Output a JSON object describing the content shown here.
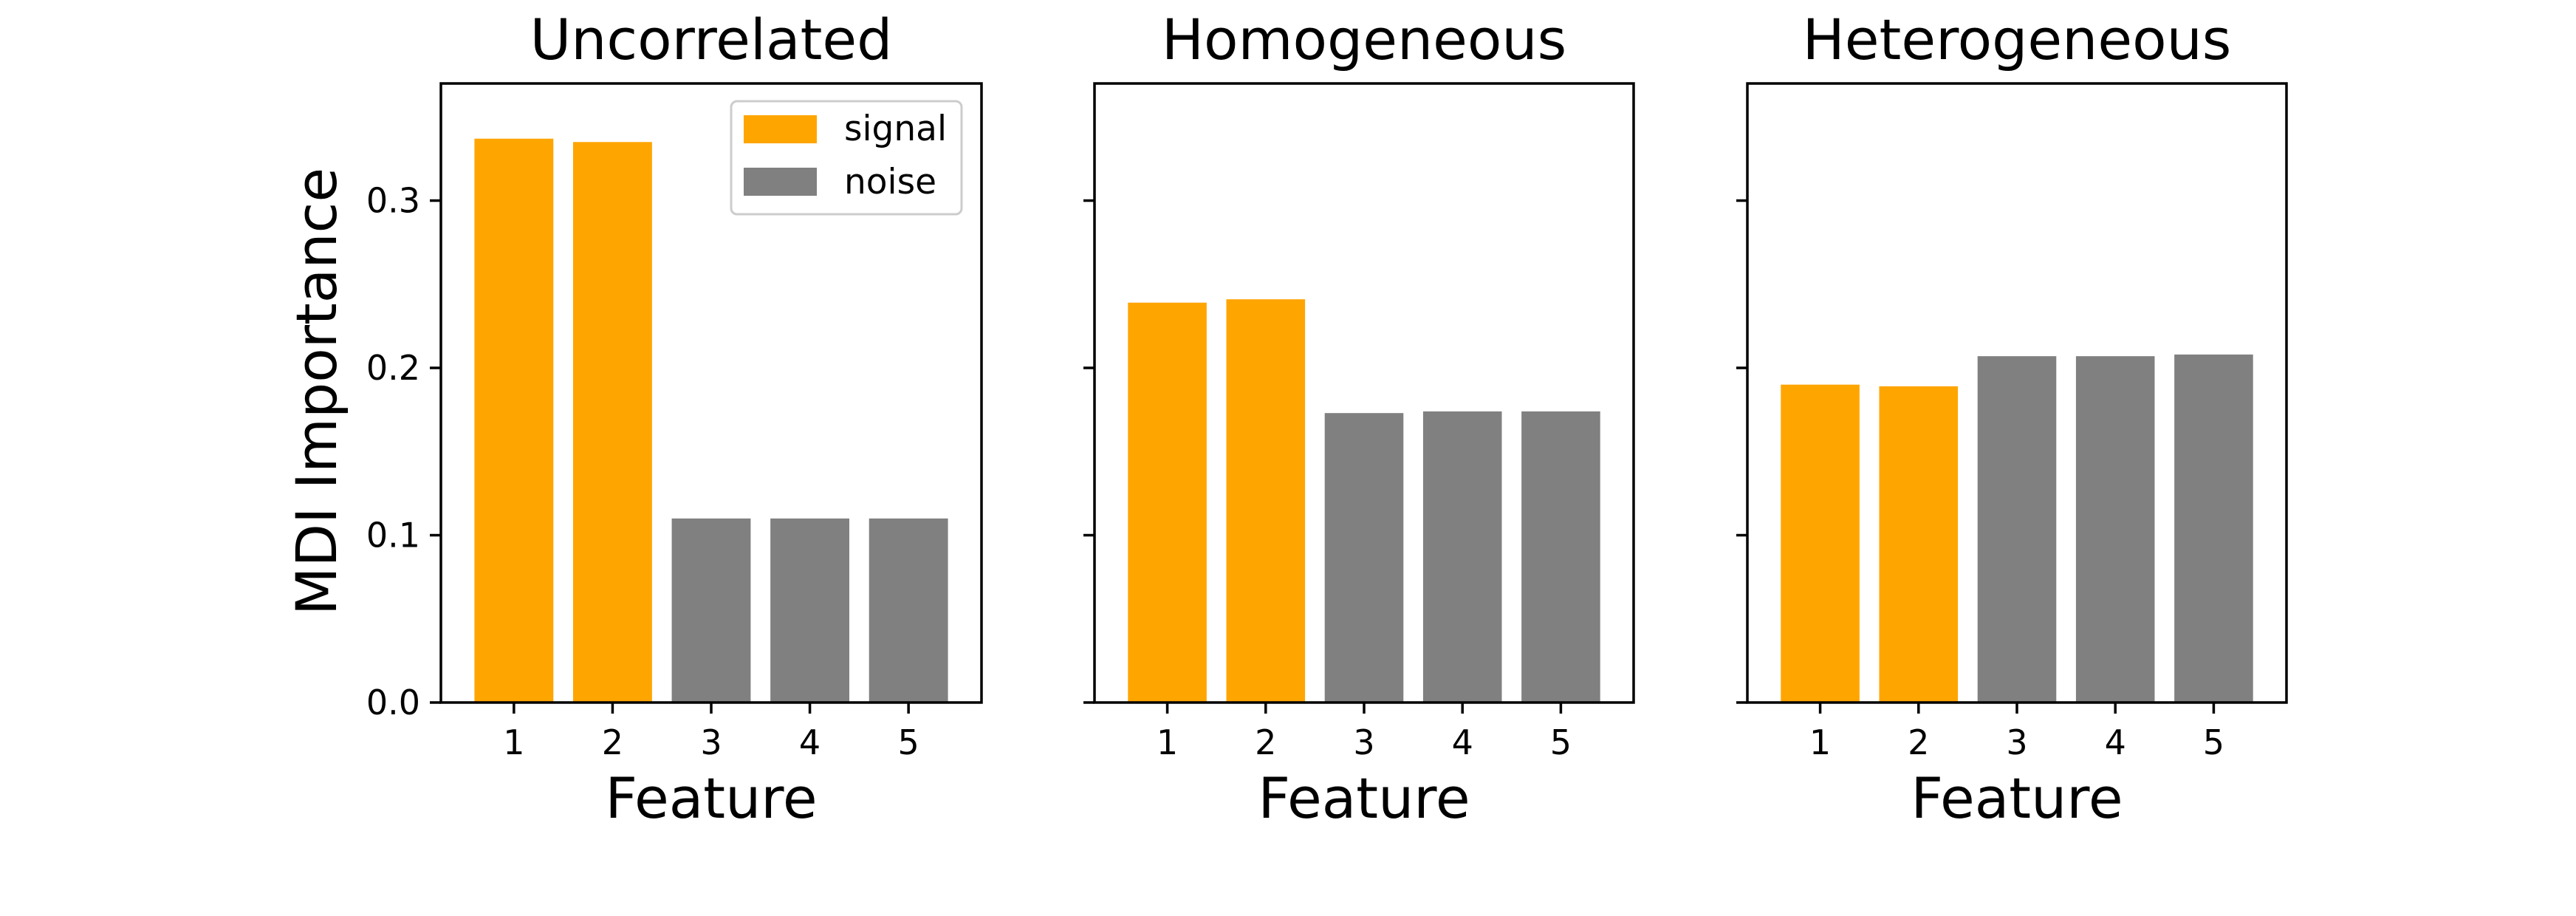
{
  "figure": {
    "ylabel": "MDI Importance"
  },
  "legend": {
    "placement": "top-right",
    "entries": [
      {
        "label": "signal",
        "color": "#FFA500"
      },
      {
        "label": "noise",
        "color": "#808080"
      }
    ]
  },
  "colors": {
    "signal": "#FFA500",
    "noise": "#808080",
    "axes": "#000000",
    "background": "#ffffff"
  },
  "chart_data": [
    {
      "type": "bar",
      "title": "Uncorrelated",
      "xlabel": "Feature",
      "ylabel": "MDI Importance",
      "categories": [
        "1",
        "2",
        "3",
        "4",
        "5"
      ],
      "values": [
        0.337,
        0.335,
        0.11,
        0.11,
        0.11
      ],
      "groups": [
        "signal",
        "signal",
        "noise",
        "noise",
        "noise"
      ],
      "ylim": [
        0,
        0.37
      ],
      "yticks": [
        "0.0",
        "0.1",
        "0.2",
        "0.3"
      ],
      "grid": false,
      "legend": true
    },
    {
      "type": "bar",
      "title": "Homogeneous",
      "xlabel": "Feature",
      "categories": [
        "1",
        "2",
        "3",
        "4",
        "5"
      ],
      "values": [
        0.239,
        0.241,
        0.173,
        0.174,
        0.174
      ],
      "groups": [
        "signal",
        "signal",
        "noise",
        "noise",
        "noise"
      ],
      "ylim": [
        0,
        0.37
      ],
      "grid": false,
      "legend": false
    },
    {
      "type": "bar",
      "title": "Heterogeneous",
      "xlabel": "Feature",
      "categories": [
        "1",
        "2",
        "3",
        "4",
        "5"
      ],
      "values": [
        0.19,
        0.189,
        0.207,
        0.207,
        0.208
      ],
      "groups": [
        "signal",
        "signal",
        "noise",
        "noise",
        "noise"
      ],
      "ylim": [
        0,
        0.37
      ],
      "grid": false,
      "legend": false
    }
  ]
}
